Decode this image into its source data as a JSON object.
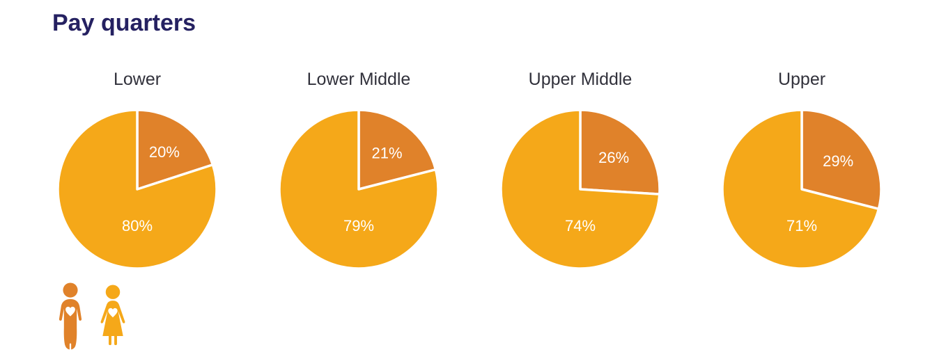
{
  "title": "Pay quarters",
  "colors": {
    "men": "#E0822A",
    "women": "#F5A819",
    "heading_text": "#252161",
    "chart_title_text": "#31313B",
    "value_label_text": "#FFFFFF",
    "background": "#FFFFFF"
  },
  "legend": {
    "items": [
      {
        "icon": "man-with-heart-icon",
        "represents": "men",
        "color": "#E0822A"
      },
      {
        "icon": "woman-with-heart-icon",
        "represents": "women",
        "color": "#F5A819"
      }
    ]
  },
  "chart_data": [
    {
      "type": "pie",
      "title": "Lower",
      "start_angle_deg": 0,
      "direction": "clockwise",
      "colors": [
        "#E0822A",
        "#F5A819"
      ],
      "slices": [
        {
          "name": "men",
          "value": 20,
          "label": "20%"
        },
        {
          "name": "women",
          "value": 80,
          "label": "80%"
        }
      ]
    },
    {
      "type": "pie",
      "title": "Lower Middle",
      "start_angle_deg": 0,
      "direction": "clockwise",
      "colors": [
        "#E0822A",
        "#F5A819"
      ],
      "slices": [
        {
          "name": "men",
          "value": 21,
          "label": "21%"
        },
        {
          "name": "women",
          "value": 79,
          "label": "79%"
        }
      ]
    },
    {
      "type": "pie",
      "title": "Upper Middle",
      "start_angle_deg": 0,
      "direction": "clockwise",
      "colors": [
        "#E0822A",
        "#F5A819"
      ],
      "slices": [
        {
          "name": "men",
          "value": 26,
          "label": "26%"
        },
        {
          "name": "women",
          "value": 74,
          "label": "74%"
        }
      ]
    },
    {
      "type": "pie",
      "title": "Upper",
      "start_angle_deg": 0,
      "direction": "clockwise",
      "colors": [
        "#E0822A",
        "#F5A819"
      ],
      "slices": [
        {
          "name": "men",
          "value": 29,
          "label": "29%"
        },
        {
          "name": "women",
          "value": 71,
          "label": "71%"
        }
      ]
    }
  ]
}
